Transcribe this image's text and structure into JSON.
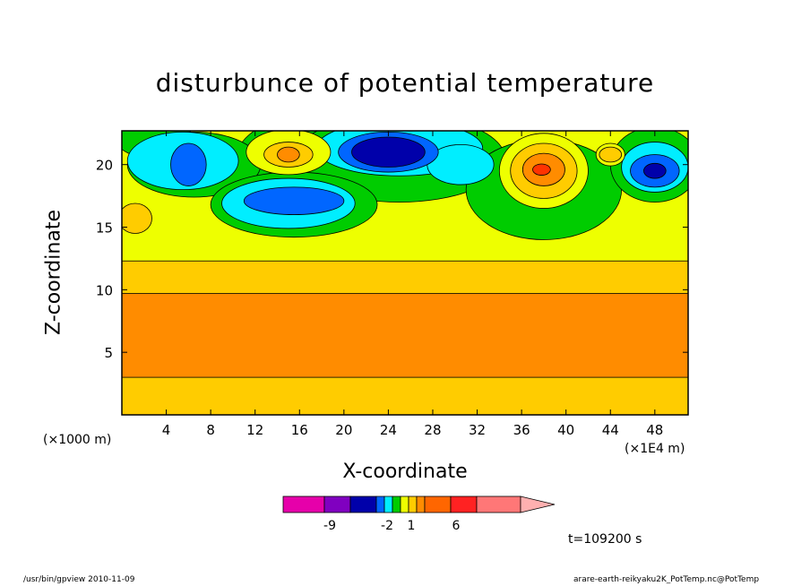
{
  "chart_data": {
    "type": "heatmap",
    "title": "disturbunce of potential temperature",
    "xlabel": "X-coordinate",
    "ylabel": "Z-coordinate",
    "x_unit_left": "(×1000 m)",
    "x_unit_right": "(×1E4 m)",
    "x_ticks": [
      "4",
      "8",
      "12",
      "16",
      "20",
      "24",
      "28",
      "32",
      "36",
      "40",
      "44",
      "48"
    ],
    "x_tick_values": [
      4,
      8,
      12,
      16,
      20,
      24,
      28,
      32,
      36,
      40,
      44,
      48
    ],
    "y_ticks": [
      "5",
      "10",
      "15",
      "20"
    ],
    "y_tick_values": [
      5,
      10,
      15,
      20
    ],
    "xlim": [
      0,
      51
    ],
    "ylim": [
      0,
      22.7
    ],
    "layers": [
      {
        "zmin": 0,
        "zmax": 22.7,
        "level": 2,
        "color": "#ffcc00"
      },
      {
        "zmin": 3.0,
        "zmax": 9.7,
        "level": 3,
        "color": "#ff8c00"
      },
      {
        "zmin": 12.3,
        "zmax": 22.7,
        "level": 1,
        "color": "#eeff00"
      }
    ],
    "blobs": [
      {
        "x": 15.0,
        "z": 19.7,
        "rx": 5.0,
        "rz": 3.8,
        "level": 0,
        "color": "#00cc00"
      },
      {
        "x": 14.0,
        "z": 21.7,
        "rx": 0.01,
        "rz": 0.01,
        "level": 0,
        "color": "#00cc00"
      },
      {
        "x": 3.0,
        "z": 22.0,
        "rx": 3.5,
        "rz": 1.5,
        "level": 0,
        "color": "#00cc00"
      },
      {
        "x": 25.0,
        "z": 20.5,
        "rx": 9.5,
        "rz": 3.5,
        "level": 0,
        "color": "#00cc00"
      },
      {
        "x": 6.5,
        "z": 20.0,
        "rx": 6.0,
        "rz": 2.6,
        "level": 0,
        "color": "#00cc00"
      },
      {
        "x": 15.5,
        "z": 16.8,
        "rx": 7.5,
        "rz": 2.6,
        "level": 0,
        "color": "#00cc00"
      },
      {
        "x": 38.0,
        "z": 18.0,
        "rx": 7.0,
        "rz": 4.0,
        "level": 0,
        "color": "#00cc00"
      },
      {
        "x": 48.0,
        "z": 20.0,
        "rx": 4.0,
        "rz": 3.0,
        "level": 0,
        "color": "#00cc00"
      },
      {
        "x": 5.5,
        "z": 20.3,
        "rx": 5.0,
        "rz": 2.3,
        "level": -1,
        "color": "#00eeff"
      },
      {
        "x": 15.0,
        "z": 16.9,
        "rx": 6.0,
        "rz": 2.0,
        "level": -1,
        "color": "#00eeff"
      },
      {
        "x": 25.0,
        "z": 21.3,
        "rx": 7.5,
        "rz": 2.2,
        "level": -1,
        "color": "#00eeff"
      },
      {
        "x": 30.5,
        "z": 20.0,
        "rx": 3.0,
        "rz": 1.6,
        "level": -1,
        "color": "#00eeff"
      },
      {
        "x": 48.0,
        "z": 19.8,
        "rx": 3.0,
        "rz": 2.0,
        "level": -1,
        "color": "#00eeff"
      },
      {
        "x": 6.0,
        "z": 20.0,
        "rx": 1.6,
        "rz": 1.7,
        "level": -2,
        "color": "#0066ff"
      },
      {
        "x": 15.5,
        "z": 17.1,
        "rx": 4.5,
        "rz": 1.1,
        "level": -2,
        "color": "#0066ff"
      },
      {
        "x": 24.0,
        "z": 21.0,
        "rx": 4.5,
        "rz": 1.6,
        "level": -2,
        "color": "#0066ff"
      },
      {
        "x": 48.0,
        "z": 19.5,
        "rx": 2.2,
        "rz": 1.3,
        "level": -2,
        "color": "#0066ff"
      },
      {
        "x": 24.0,
        "z": 21.0,
        "rx": 3.3,
        "rz": 1.2,
        "level": -3,
        "color": "#0000aa"
      },
      {
        "x": 48.0,
        "z": 19.5,
        "rx": 1.0,
        "rz": 0.6,
        "level": -3,
        "color": "#0000aa"
      },
      {
        "x": 15.0,
        "z": 21.0,
        "rx": 3.8,
        "rz": 1.8,
        "level": 1,
        "color": "#eeff00"
      },
      {
        "x": 38.0,
        "z": 19.5,
        "rx": 4.0,
        "rz": 3.0,
        "level": 1,
        "color": "#eeff00"
      },
      {
        "x": 44.0,
        "z": 20.8,
        "rx": 1.3,
        "rz": 0.9,
        "level": 1,
        "color": "#eeff00"
      },
      {
        "x": 1.2,
        "z": 15.7,
        "rx": 1.5,
        "rz": 1.2,
        "level": 2,
        "color": "#ffcc00"
      },
      {
        "x": 15.0,
        "z": 20.8,
        "rx": 2.2,
        "rz": 1.0,
        "level": 2,
        "color": "#ffcc00"
      },
      {
        "x": 38.0,
        "z": 19.5,
        "rx": 3.0,
        "rz": 2.2,
        "level": 2,
        "color": "#ffcc00"
      },
      {
        "x": 44.0,
        "z": 20.8,
        "rx": 1.0,
        "rz": 0.6,
        "level": 2,
        "color": "#ffcc00"
      },
      {
        "x": 15.0,
        "z": 20.8,
        "rx": 1.0,
        "rz": 0.6,
        "level": 3,
        "color": "#ff8c00"
      },
      {
        "x": 38.0,
        "z": 19.6,
        "rx": 1.9,
        "rz": 1.3,
        "level": 3,
        "color": "#ff8c00"
      },
      {
        "x": 37.8,
        "z": 19.6,
        "rx": 0.8,
        "rz": 0.45,
        "level": 4,
        "color": "#ff3300"
      }
    ],
    "colorbar": {
      "colors": [
        "#e600aa",
        "#8000c0",
        "#0000aa",
        "#0066ff",
        "#00eeff",
        "#00cc00",
        "#eeff00",
        "#ffcc00",
        "#ff8c00",
        "#ff6600",
        "#ff2222",
        "#ff7777",
        "#ffb0b0"
      ],
      "labels": [
        "-9",
        "-2",
        "1",
        "6"
      ]
    }
  },
  "time_label": "t=109200 s",
  "footer": {
    "left": "/usr/bin/gpview  2010-11-09",
    "right": "arare-earth-reikyaku2K_PotTemp.nc@PotTemp"
  }
}
